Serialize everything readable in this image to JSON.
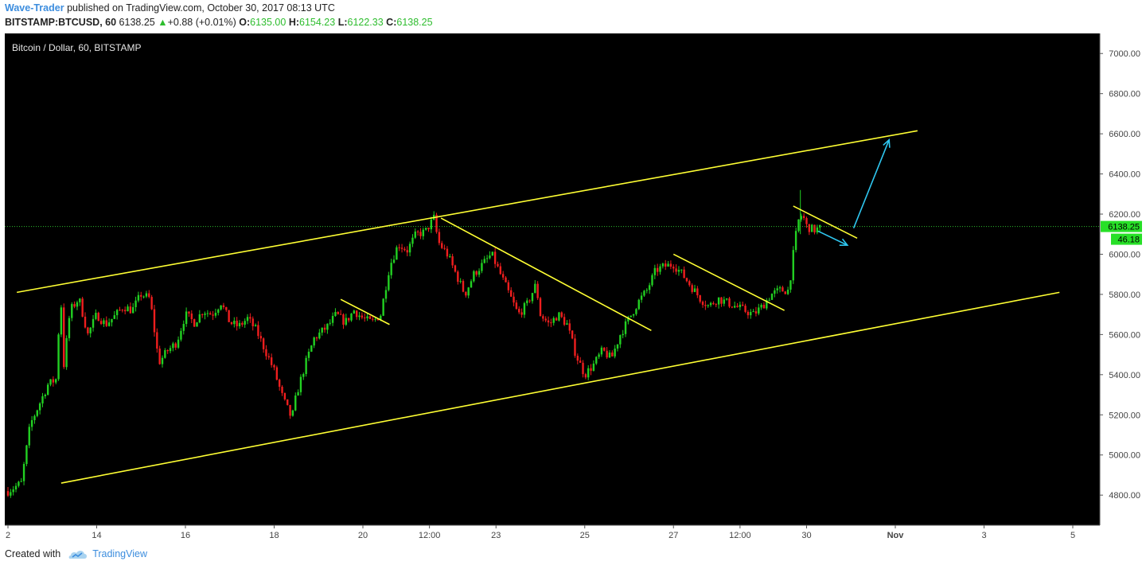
{
  "header": {
    "author": "Wave-Trader",
    "published": "published on TradingView.com, October 30, 2017 08:13 UTC",
    "symbol": "BITSTAMP:BTCUSD, 60",
    "last": "6138.25",
    "change": "+0.88 (+0.01%)",
    "o_label": "O:",
    "o_value": "6135.00",
    "h_label": "H:",
    "h_value": "6154.23",
    "l_label": "L:",
    "l_value": "6122.33",
    "c_label": "C:",
    "c_value": "6138.25"
  },
  "footer": {
    "created_with": "Created with",
    "brand": "TradingView"
  },
  "colors": {
    "background": "#000000",
    "up": "#22d022",
    "down": "#ef1e1e",
    "trendline": "#ffff33",
    "arrow": "#2fc7f0",
    "price_line": "#2ebd2e",
    "tag": "#27e027"
  },
  "chart_data": {
    "type": "candlestick",
    "title": "Bitcoin / Dollar, 60, BITSTAMP",
    "xlabel": "",
    "ylabel": "",
    "ylim": [
      4650,
      7100
    ],
    "y_ticks": [
      "7000.00",
      "6800.00",
      "6600.00",
      "6400.00",
      "6200.00",
      "6000.00",
      "5800.00",
      "5600.00",
      "5400.00",
      "5200.00",
      "5000.00",
      "4800.00"
    ],
    "x_ticks": [
      {
        "label": "2",
        "x": 0.0
      },
      {
        "label": "14",
        "x": 10.0
      },
      {
        "label": "16",
        "x": 20.0
      },
      {
        "label": "18",
        "x": 30.0
      },
      {
        "label": "20",
        "x": 40.0
      },
      {
        "label": "12:00",
        "x": 47.5
      },
      {
        "label": "23",
        "x": 55.0
      },
      {
        "label": "25",
        "x": 65.0
      },
      {
        "label": "27",
        "x": 75.0
      },
      {
        "label": "12:00",
        "x": 82.5
      },
      {
        "label": "30",
        "x": 90.0
      },
      {
        "label": "Nov",
        "x": 100.0
      },
      {
        "label": "3",
        "x": 110.0
      },
      {
        "label": "5",
        "x": 120.0
      }
    ],
    "last_price": 6138.25,
    "last_price_label": "6138.25",
    "countdown_label": "46.18",
    "path": [
      [
        0.0,
        4820
      ],
      [
        1.5,
        4860
      ],
      [
        2.5,
        5150
      ],
      [
        3.5,
        5250
      ],
      [
        4.5,
        5350
      ],
      [
        5.5,
        5380
      ],
      [
        5.9,
        5840
      ],
      [
        6.3,
        5450
      ],
      [
        7.0,
        5720
      ],
      [
        8.0,
        5780
      ],
      [
        9.0,
        5600
      ],
      [
        10.0,
        5700
      ],
      [
        11.0,
        5650
      ],
      [
        12.0,
        5690
      ],
      [
        13.0,
        5740
      ],
      [
        14.0,
        5720
      ],
      [
        15.0,
        5800
      ],
      [
        16.0,
        5780
      ],
      [
        17.0,
        5460
      ],
      [
        18.0,
        5520
      ],
      [
        19.0,
        5560
      ],
      [
        20.0,
        5700
      ],
      [
        21.0,
        5660
      ],
      [
        22.0,
        5720
      ],
      [
        23.0,
        5700
      ],
      [
        24.0,
        5760
      ],
      [
        25.0,
        5660
      ],
      [
        26.0,
        5640
      ],
      [
        27.0,
        5680
      ],
      [
        28.0,
        5620
      ],
      [
        29.0,
        5520
      ],
      [
        30.0,
        5420
      ],
      [
        31.0,
        5280
      ],
      [
        32.0,
        5180
      ],
      [
        32.5,
        5300
      ],
      [
        33.5,
        5450
      ],
      [
        34.5,
        5580
      ],
      [
        36.0,
        5640
      ],
      [
        37.0,
        5700
      ],
      [
        38.0,
        5660
      ],
      [
        39.0,
        5720
      ],
      [
        40.0,
        5680
      ],
      [
        41.0,
        5660
      ],
      [
        42.0,
        5700
      ],
      [
        43.0,
        5940
      ],
      [
        44.0,
        6050
      ],
      [
        45.0,
        6020
      ],
      [
        46.0,
        6100
      ],
      [
        47.0,
        6110
      ],
      [
        48.0,
        6180
      ],
      [
        48.5,
        6060
      ],
      [
        49.5,
        6000
      ],
      [
        50.5,
        5900
      ],
      [
        51.5,
        5800
      ],
      [
        52.5,
        5900
      ],
      [
        53.5,
        5950
      ],
      [
        54.5,
        6000
      ],
      [
        55.5,
        5900
      ],
      [
        56.5,
        5800
      ],
      [
        57.5,
        5700
      ],
      [
        58.5,
        5750
      ],
      [
        59.5,
        5850
      ],
      [
        60.0,
        5700
      ],
      [
        61.0,
        5650
      ],
      [
        62.0,
        5700
      ],
      [
        63.0,
        5650
      ],
      [
        64.0,
        5500
      ],
      [
        65.0,
        5400
      ],
      [
        66.0,
        5450
      ],
      [
        67.0,
        5520
      ],
      [
        68.0,
        5480
      ],
      [
        69.0,
        5600
      ],
      [
        70.0,
        5680
      ],
      [
        71.0,
        5760
      ],
      [
        72.0,
        5820
      ],
      [
        73.0,
        5920
      ],
      [
        74.0,
        5940
      ],
      [
        75.0,
        5950
      ],
      [
        76.0,
        5900
      ],
      [
        77.0,
        5840
      ],
      [
        78.0,
        5780
      ],
      [
        79.0,
        5740
      ],
      [
        80.0,
        5780
      ],
      [
        81.0,
        5760
      ],
      [
        82.0,
        5740
      ],
      [
        83.0,
        5720
      ],
      [
        84.0,
        5700
      ],
      [
        85.0,
        5740
      ],
      [
        86.0,
        5800
      ],
      [
        87.0,
        5820
      ],
      [
        88.0,
        5820
      ],
      [
        88.5,
        6000
      ],
      [
        89.0,
        6160
      ],
      [
        89.5,
        6200
      ],
      [
        90.0,
        6140
      ],
      [
        90.8,
        6120
      ],
      [
        91.5,
        6130
      ]
    ],
    "trendlines": [
      {
        "name": "channel-upper",
        "from": [
          1.0,
          5810
        ],
        "to": [
          102.5,
          6615
        ]
      },
      {
        "name": "channel-lower",
        "from": [
          6.0,
          4860
        ],
        "to": [
          118.5,
          5810
        ]
      },
      {
        "name": "flag-1",
        "from": [
          37.5,
          5775
        ],
        "to": [
          43.0,
          5650
        ]
      },
      {
        "name": "flag-2",
        "from": [
          48.8,
          6180
        ],
        "to": [
          72.5,
          5620
        ]
      },
      {
        "name": "flag-3",
        "from": [
          75.0,
          6000
        ],
        "to": [
          87.5,
          5720
        ]
      },
      {
        "name": "flag-4",
        "from": [
          88.5,
          6240
        ],
        "to": [
          95.7,
          6080
        ]
      }
    ],
    "arrows": [
      {
        "name": "arrow-up",
        "from": [
          95.3,
          6130
        ],
        "to": [
          99.3,
          6570
        ]
      },
      {
        "name": "arrow-down",
        "from": [
          91.3,
          6115
        ],
        "to": [
          94.6,
          6045
        ]
      }
    ]
  }
}
